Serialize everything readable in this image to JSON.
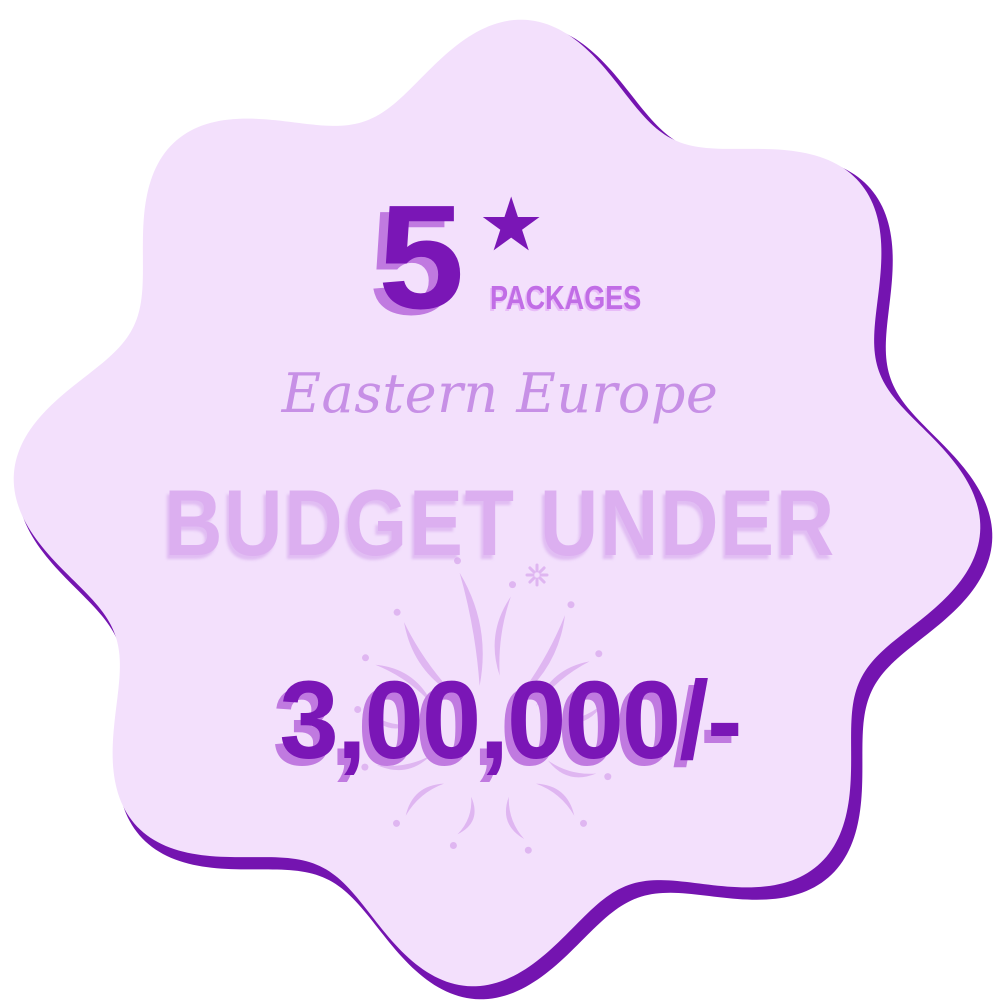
{
  "badge": {
    "rating_number": "5",
    "rating_star": "★",
    "packages_label": "PACKAGES",
    "region": "Eastern Europe",
    "budget_label": "BUDGET UNDER",
    "amount": "3,00,000/-"
  },
  "colors": {
    "background": "#ffffff",
    "badge_fill": "#f3e0fc",
    "badge_outline": "#7414b0",
    "primary_purple": "#7a16b6",
    "shadow_purple": "#c07ae0",
    "soft_purple": "#c790e6",
    "pale_purple": "#dcaff0",
    "firework": "#dcaff0"
  },
  "decorations": {
    "background_graphic": "firework-burst-icon"
  }
}
